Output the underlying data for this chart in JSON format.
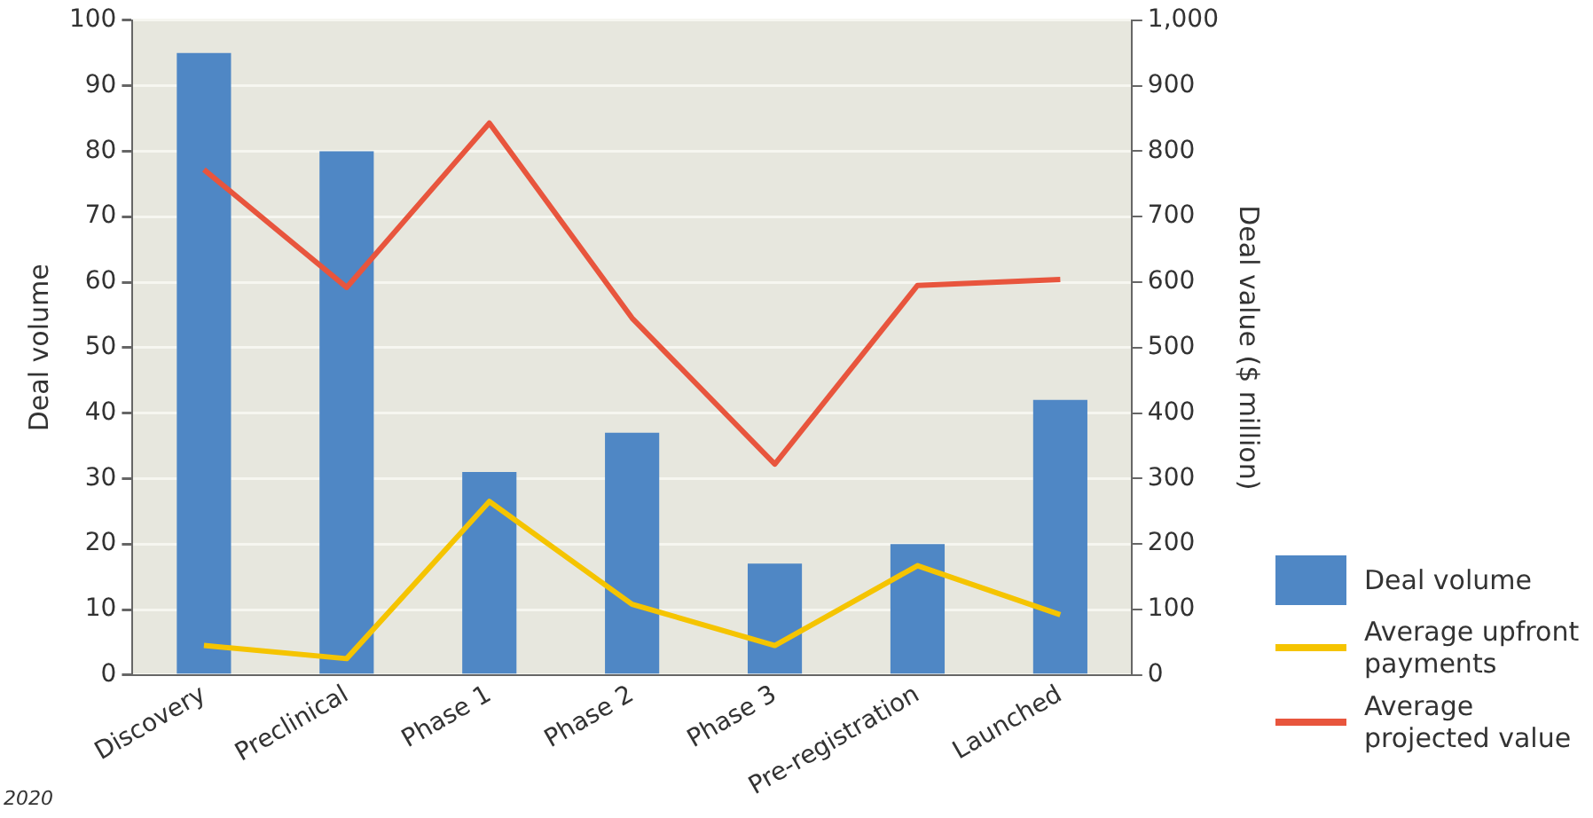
{
  "chart_data": {
    "type": "bar",
    "ylabel": "Deal volume",
    "y2label": "Deal value ($ million)",
    "categories": [
      "Discovery",
      "Preclinical",
      "Phase 1",
      "Phase 2",
      "Phase 3",
      "Pre-registration",
      "Launched"
    ],
    "series": [
      {
        "name": "Deal volume",
        "color": "#4f87c5",
        "values": [
          95,
          80,
          31,
          37,
          17,
          20,
          42
        ]
      },
      {
        "name": "Average upfront payments",
        "type": "line",
        "axis": "y2",
        "color": "#f5c400",
        "values": [
          45,
          25,
          265,
          108,
          45,
          167,
          92
        ]
      },
      {
        "name": "Average projected value",
        "type": "line",
        "axis": "y2",
        "color": "#e8553d",
        "values": [
          772,
          592,
          843,
          545,
          322,
          595,
          604
        ]
      }
    ],
    "ylim": [
      0,
      100
    ],
    "yticks": [
      0,
      10,
      20,
      30,
      40,
      50,
      60,
      70,
      80,
      90,
      100
    ],
    "y2lim": [
      0,
      1000
    ],
    "y2ticks": [
      0,
      100,
      200,
      300,
      400,
      500,
      600,
      700,
      800,
      900,
      {
        "value": 1000,
        "label": "1,000"
      }
    ],
    "grid": "y",
    "legend": "bottom right",
    "marker": "none",
    "annotations": [
      "2020"
    ]
  }
}
